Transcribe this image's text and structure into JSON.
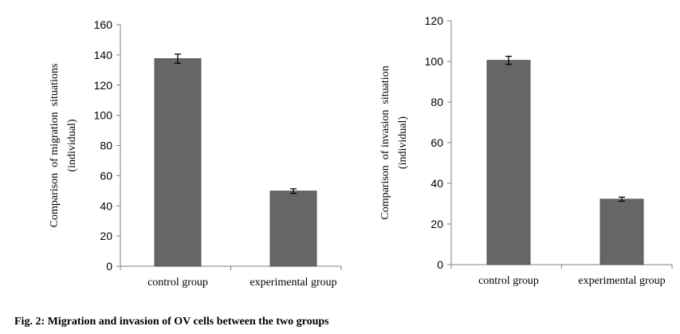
{
  "caption": "Fig. 2: Migration and invasion of OV cells between the two groups",
  "chart_data": [
    {
      "type": "bar",
      "categories": [
        "control group",
        "experimental group"
      ],
      "values": [
        137.5,
        49.8
      ],
      "errors": [
        3,
        1.5
      ],
      "ylabel": [
        "Comparison  of migration  situations",
        "(individual)"
      ],
      "xlabel": "",
      "title": "",
      "ylim": [
        0,
        160
      ],
      "yticks": [
        0,
        20,
        40,
        60,
        80,
        100,
        120,
        140,
        160
      ],
      "bar_color": "#666666",
      "grid": false,
      "legend": false
    },
    {
      "type": "bar",
      "categories": [
        "control group",
        "experimental group"
      ],
      "values": [
        100.5,
        32.2
      ],
      "errors": [
        2,
        1
      ],
      "ylabel": [
        "Comparison  of invasion  situation",
        "(individual)"
      ],
      "xlabel": "",
      "title": "",
      "ylim": [
        0,
        120
      ],
      "yticks": [
        0,
        20,
        40,
        60,
        80,
        100,
        120
      ],
      "bar_color": "#666666",
      "grid": false,
      "legend": false
    }
  ]
}
